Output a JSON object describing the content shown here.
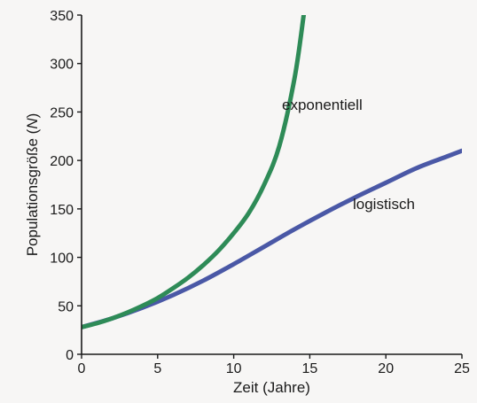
{
  "chart_data": {
    "type": "line",
    "xlabel": "Zeit (Jahre)",
    "ylabel": {
      "before": "Populationsgröße (",
      "italic": "N",
      "after": ")"
    },
    "xlim": [
      0,
      25
    ],
    "ylim": [
      0,
      350
    ],
    "x_ticks": [
      0,
      5,
      10,
      15,
      20,
      25
    ],
    "y_ticks": [
      0,
      50,
      100,
      150,
      200,
      250,
      300,
      350
    ],
    "x_tick_labels": [
      "0",
      "5",
      "10",
      "15",
      "20",
      "25"
    ],
    "y_tick_labels": [
      "0",
      "50",
      "100",
      "150",
      "200",
      "250",
      "300",
      "350"
    ],
    "grid": false,
    "series": [
      {
        "name": "exponentiell",
        "color": "#2e8b57",
        "x": [
          0,
          1,
          2,
          3,
          4,
          5,
          6,
          7,
          8,
          9,
          10,
          11,
          12,
          13,
          14,
          14.6
        ],
        "y": [
          28,
          32,
          37,
          43,
          50,
          58,
          68,
          79,
          92,
          107,
          125,
          146,
          175,
          215,
          285,
          350
        ]
      },
      {
        "name": "logistisch",
        "color": "#4a58a6",
        "x": [
          0,
          2,
          4,
          6,
          8,
          10,
          12,
          14,
          16,
          18,
          20,
          22,
          24,
          25
        ],
        "y": [
          28,
          37,
          48,
          61,
          76,
          93,
          111,
          129,
          146,
          162,
          177,
          192,
          204,
          210
        ]
      }
    ]
  }
}
